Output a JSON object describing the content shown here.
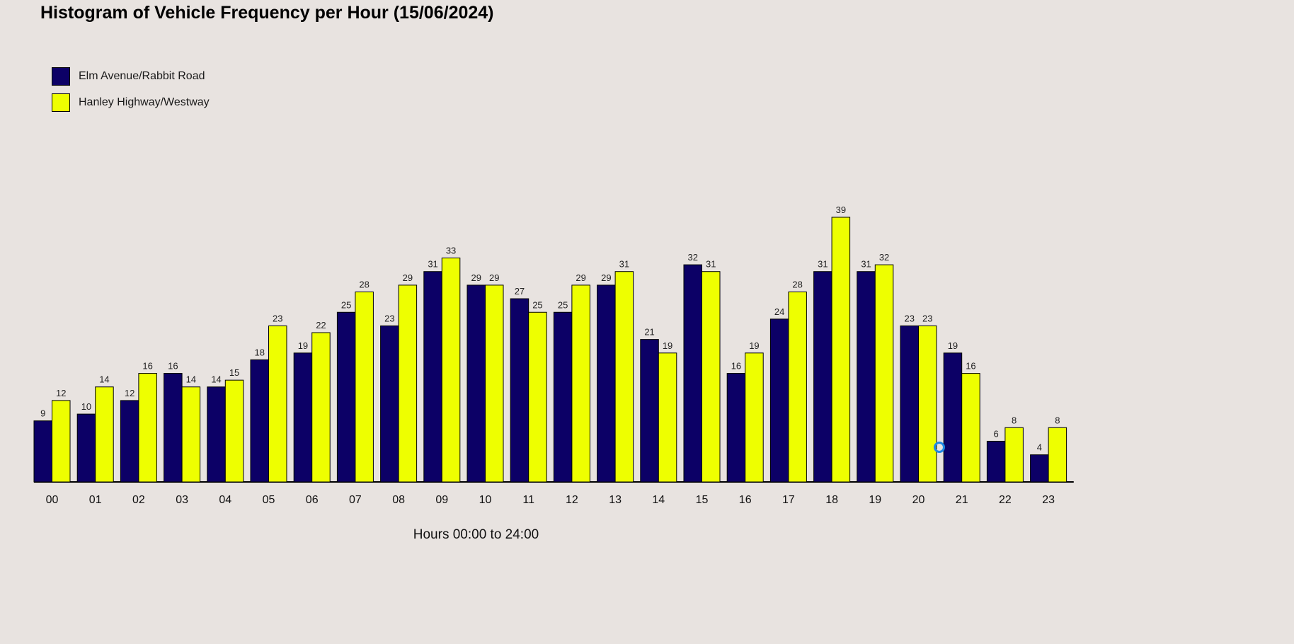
{
  "chart_data": {
    "type": "bar",
    "title": "Histogram of Vehicle Frequency per Hour (15/06/2024)",
    "xlabel": "Hours 00:00 to 24:00",
    "ylabel": "",
    "categories": [
      "00",
      "01",
      "02",
      "03",
      "04",
      "05",
      "06",
      "07",
      "08",
      "09",
      "10",
      "11",
      "12",
      "13",
      "14",
      "15",
      "16",
      "17",
      "18",
      "19",
      "20",
      "21",
      "22",
      "23"
    ],
    "series": [
      {
        "name": "Elm Avenue/Rabbit Road",
        "color": "#0c0066",
        "values": [
          9,
          10,
          12,
          16,
          14,
          18,
          19,
          25,
          23,
          31,
          29,
          27,
          25,
          29,
          21,
          32,
          16,
          24,
          31,
          31,
          23,
          19,
          6,
          4
        ]
      },
      {
        "name": "Hanley Highway/Westway",
        "color": "#eeff00",
        "values": [
          12,
          14,
          16,
          14,
          15,
          23,
          22,
          28,
          29,
          33,
          29,
          25,
          29,
          31,
          19,
          31,
          19,
          28,
          39,
          32,
          23,
          16,
          8,
          8
        ]
      }
    ],
    "ylim": [
      0,
      39
    ],
    "grid": false,
    "legend": "top-left"
  },
  "colors": {
    "background": "#e8e3e0",
    "bar_outline": "#000000"
  }
}
